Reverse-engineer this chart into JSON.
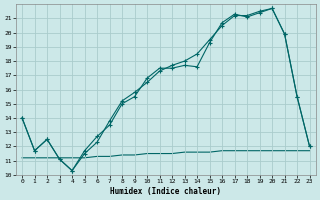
{
  "xlabel": "Humidex (Indice chaleur)",
  "background_color": "#cce8e8",
  "grid_color": "#aacccc",
  "line_color": "#006666",
  "xlim": [
    -0.5,
    23.5
  ],
  "ylim": [
    10,
    22
  ],
  "yticks": [
    10,
    11,
    12,
    13,
    14,
    15,
    16,
    17,
    18,
    19,
    20,
    21
  ],
  "xticks": [
    0,
    1,
    2,
    3,
    4,
    5,
    6,
    7,
    8,
    9,
    10,
    11,
    12,
    13,
    14,
    15,
    16,
    17,
    18,
    19,
    20,
    21,
    22,
    23
  ],
  "series1_x": [
    0,
    1,
    2,
    3,
    4,
    5,
    6,
    7,
    8,
    9,
    10,
    11,
    12,
    13,
    14,
    15,
    16,
    17,
    18,
    19,
    20,
    21,
    22,
    23
  ],
  "series1_y": [
    14.0,
    11.7,
    12.5,
    11.1,
    10.3,
    11.7,
    12.7,
    13.5,
    15.0,
    15.5,
    16.8,
    17.5,
    17.5,
    17.7,
    17.6,
    19.3,
    20.7,
    21.3,
    21.1,
    21.4,
    21.7,
    19.9,
    15.5,
    12.0
  ],
  "series2_x": [
    0,
    1,
    2,
    3,
    4,
    5,
    6,
    7,
    8,
    9,
    10,
    11,
    12,
    13,
    14,
    15,
    16,
    17,
    18,
    19,
    20,
    21,
    22,
    23
  ],
  "series2_y": [
    14.0,
    11.7,
    12.5,
    11.1,
    10.3,
    11.5,
    12.3,
    13.8,
    15.2,
    15.8,
    16.5,
    17.3,
    17.7,
    18.0,
    18.5,
    19.5,
    20.5,
    21.2,
    21.2,
    21.5,
    21.7,
    19.9,
    15.5,
    12.0
  ],
  "series3_x": [
    0,
    1,
    2,
    3,
    4,
    5,
    6,
    7,
    8,
    9,
    10,
    11,
    12,
    13,
    14,
    15,
    16,
    17,
    18,
    19,
    20,
    21,
    22,
    23
  ],
  "series3_y": [
    11.2,
    11.2,
    11.2,
    11.2,
    11.2,
    11.2,
    11.3,
    11.3,
    11.4,
    11.4,
    11.5,
    11.5,
    11.5,
    11.6,
    11.6,
    11.6,
    11.7,
    11.7,
    11.7,
    11.7,
    11.7,
    11.7,
    11.7,
    11.7
  ]
}
